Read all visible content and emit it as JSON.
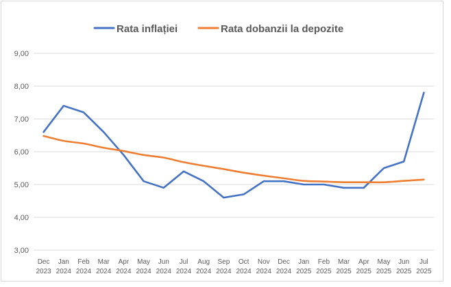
{
  "chart_data": {
    "type": "line",
    "title": "",
    "xlabel": "",
    "ylabel": "",
    "ylim": [
      3,
      9
    ],
    "y_ticks": [
      "3,00",
      "4,00",
      "5,00",
      "6,00",
      "7,00",
      "8,00",
      "9,00"
    ],
    "grid": true,
    "legend_position": "top",
    "categories": [
      {
        "month": "Dec",
        "year": "2023"
      },
      {
        "month": "Jan",
        "year": "2024"
      },
      {
        "month": "Feb",
        "year": "2024"
      },
      {
        "month": "Mar",
        "year": "2024"
      },
      {
        "month": "Apr",
        "year": "2024"
      },
      {
        "month": "May",
        "year": "2024"
      },
      {
        "month": "Jun",
        "year": "2024"
      },
      {
        "month": "Jul",
        "year": "2024"
      },
      {
        "month": "Aug",
        "year": "2024"
      },
      {
        "month": "Sep",
        "year": "2024"
      },
      {
        "month": "Oct",
        "year": "2024"
      },
      {
        "month": "Nov",
        "year": "2024"
      },
      {
        "month": "Dec",
        "year": "2024"
      },
      {
        "month": "Jan",
        "year": "2025"
      },
      {
        "month": "Feb",
        "year": "2025"
      },
      {
        "month": "Mar",
        "year": "2025"
      },
      {
        "month": "Apr",
        "year": "2025"
      },
      {
        "month": "May",
        "year": "2025"
      },
      {
        "month": "Jun",
        "year": "2025"
      },
      {
        "month": "Jul",
        "year": "2025"
      }
    ],
    "series": [
      {
        "name": "Rata inflației",
        "color": "#4472c4",
        "values": [
          6.6,
          7.4,
          7.2,
          6.6,
          5.9,
          5.1,
          4.9,
          5.4,
          5.1,
          4.6,
          4.7,
          5.1,
          5.1,
          5.0,
          5.0,
          4.9,
          4.9,
          5.5,
          5.7,
          7.8
        ]
      },
      {
        "name": "Rata dobanzii la depozite",
        "color": "#ed7d31",
        "values": [
          6.48,
          6.33,
          6.25,
          6.12,
          6.02,
          5.9,
          5.82,
          5.68,
          5.57,
          5.47,
          5.36,
          5.27,
          5.19,
          5.11,
          5.09,
          5.07,
          5.07,
          5.07,
          5.11,
          5.15
        ]
      }
    ]
  }
}
